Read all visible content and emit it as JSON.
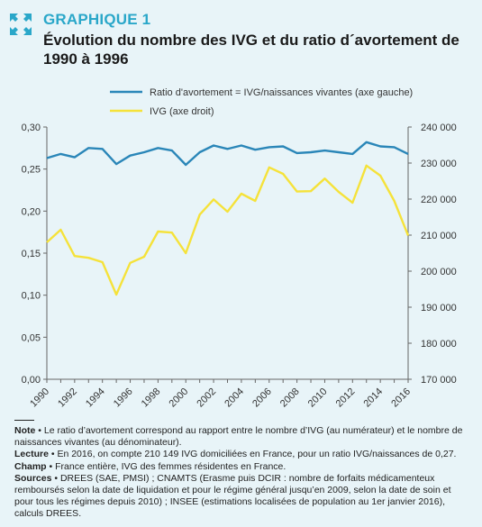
{
  "header": {
    "label": "GRAPHIQUE 1",
    "title": "Évolution du nombre des IVG et du ratio d´avortement de 1990 à 1996"
  },
  "colors": {
    "ratio_line": "#2a86b8",
    "ivg_line": "#f5e23a",
    "accent": "#2aa7c9"
  },
  "chart_data": {
    "type": "line",
    "x": [
      1990,
      1991,
      1992,
      1993,
      1994,
      1995,
      1996,
      1997,
      1998,
      1999,
      2000,
      2001,
      2002,
      2003,
      2004,
      2005,
      2006,
      2007,
      2008,
      2009,
      2010,
      2011,
      2012,
      2013,
      2014,
      2015,
      2016
    ],
    "x_tick_labels": [
      "1990",
      "1992",
      "1994",
      "1996",
      "1998",
      "2000",
      "2002",
      "2004",
      "2006",
      "2008",
      "2010",
      "2012",
      "2014",
      "2016"
    ],
    "left_axis": {
      "ylim": [
        0,
        0.3
      ],
      "ticks": [
        "0,00",
        "0,05",
        "0,10",
        "0,15",
        "0,20",
        "0,25",
        "0,30"
      ],
      "tick_values": [
        0,
        0.05,
        0.1,
        0.15,
        0.2,
        0.25,
        0.3
      ]
    },
    "right_axis": {
      "ylim": [
        170000,
        240000
      ],
      "ticks": [
        "170 000",
        "180 000",
        "190 000",
        "200 000",
        "210 000",
        "220 000",
        "230 000",
        "240 000"
      ],
      "tick_values": [
        170000,
        180000,
        190000,
        200000,
        210000,
        220000,
        230000,
        240000
      ]
    },
    "grid": false,
    "legend_position": "top",
    "series": [
      {
        "name": "Ratio d'avortement = IVG/naissances vivantes (axe gauche)",
        "axis": "left",
        "values": [
          0.263,
          0.268,
          0.264,
          0.275,
          0.274,
          0.256,
          0.266,
          0.27,
          0.275,
          0.272,
          0.255,
          0.27,
          0.278,
          0.274,
          0.278,
          0.273,
          0.276,
          0.277,
          0.269,
          0.27,
          0.272,
          0.27,
          0.268,
          0.282,
          0.277,
          0.276,
          0.268
        ]
      },
      {
        "name": "IVG (axe droit)",
        "axis": "right",
        "values": [
          208000,
          211500,
          204200,
          203700,
          202500,
          193500,
          202300,
          204000,
          211000,
          210700,
          205000,
          215700,
          219900,
          216500,
          221500,
          219500,
          228800,
          227000,
          222100,
          222200,
          225700,
          222000,
          219000,
          229300,
          226500,
          219500,
          209900
        ]
      }
    ]
  },
  "footnotes": {
    "note_label": "Note",
    "note_text": " • Le ratio d’avortement correspond au rapport entre le nombre d’IVG (au numérateur) et le nombre de naissances vivantes (au dénominateur).",
    "lecture_label": "Lecture",
    "lecture_text": " • En 2016, on compte 210 149 IVG domiciliées en France, pour un ratio IVG/naissances de 0,27.",
    "champ_label": "Champ",
    "champ_text": " • France entière, IVG des femmes résidentes en France.",
    "sources_label": "Sources",
    "sources_text": " • DREES (SAE, PMSI) ; CNAMTS (Erasme puis DCIR : nombre de forfaits médicamenteux remboursés selon la date de liquidation et pour le régime général jusqu’en 2009, selon la date de soin et pour tous les régimes depuis 2010) ; INSEE (estimations localisées de population au 1er janvier 2016), calculs DREES."
  }
}
